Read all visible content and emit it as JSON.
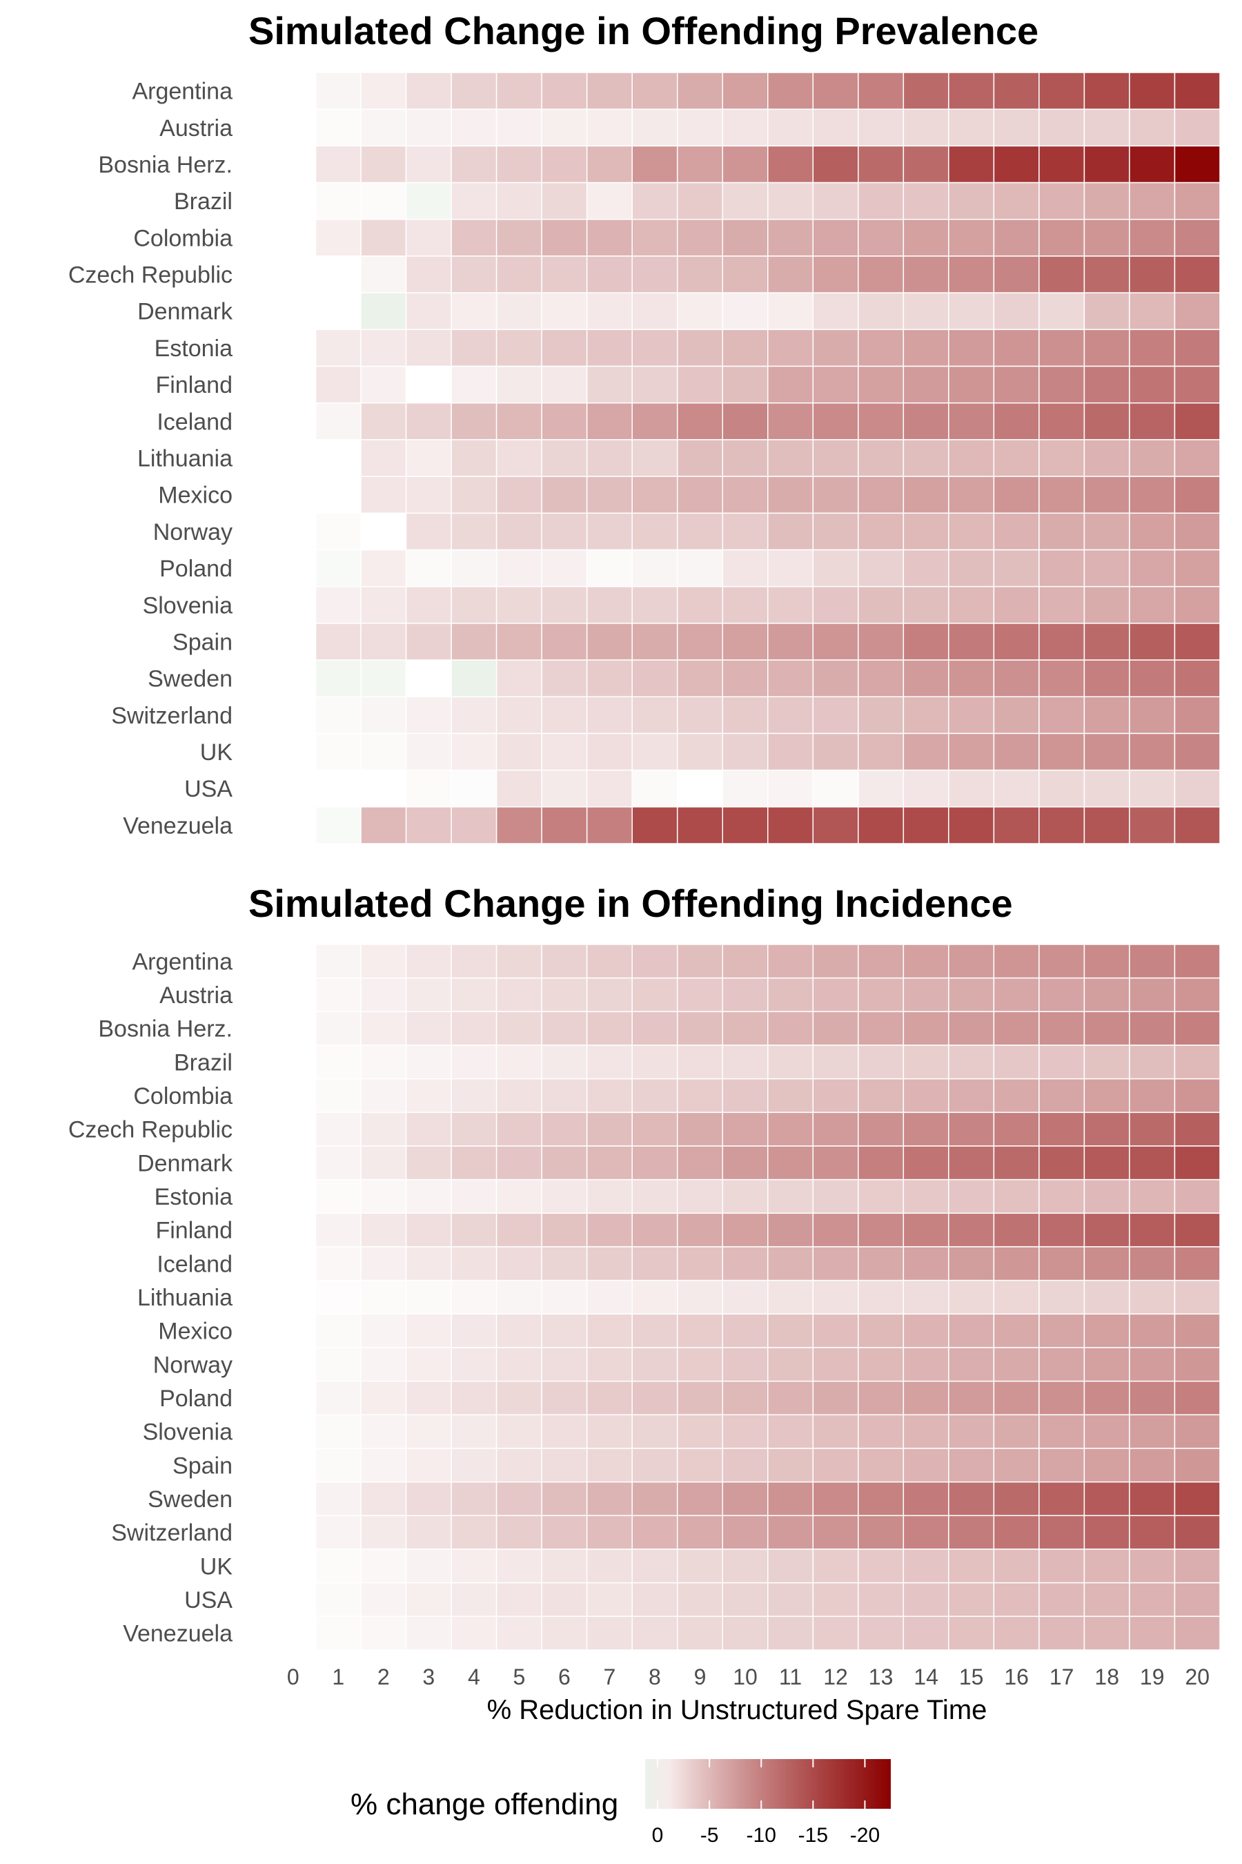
{
  "chart_data": [
    {
      "type": "heatmap",
      "title": "Simulated Change in Offending Prevalence",
      "rows": [
        "Argentina",
        "Austria",
        "Bosnia Herz.",
        "Brazil",
        "Colombia",
        "Czech Republic",
        "Denmark",
        "Estonia",
        "Finland",
        "Iceland",
        "Lithuania",
        "Mexico",
        "Norway",
        "Poland",
        "Slovenia",
        "Spain",
        "Sweden",
        "Switzerland",
        "UK",
        "USA",
        "Venezuela"
      ],
      "columns": [
        1,
        2,
        3,
        4,
        5,
        6,
        7,
        8,
        9,
        10,
        11,
        12,
        13,
        14,
        15,
        16,
        17,
        18,
        19,
        20
      ],
      "values": [
        [
          -0.5,
          -1,
          -2,
          -3,
          -3.5,
          -4,
          -4.5,
          -5,
          -6,
          -7,
          -8.5,
          -9,
          -10,
          -12,
          -12.5,
          -13,
          -14,
          -15,
          -16,
          -16.5
        ],
        [
          -0.2,
          -0.5,
          -0.7,
          -0.8,
          -0.8,
          -0.9,
          -1,
          -1.2,
          -1.3,
          -1.5,
          -1.8,
          -2,
          -2.2,
          -2.4,
          -2.6,
          -2.8,
          -3,
          -3,
          -3.5,
          -4
        ],
        [
          -1.5,
          -2.5,
          -1.5,
          -3,
          -3.5,
          -4,
          -5,
          -8,
          -7,
          -8,
          -11,
          -13,
          -12,
          -12,
          -16,
          -17,
          -17,
          -18,
          -20,
          -22
        ],
        [
          -0.2,
          -0.2,
          0.3,
          -1.5,
          -1.8,
          -2.5,
          -1,
          -3,
          -3.5,
          -2.5,
          -2.5,
          -3,
          -4,
          -4,
          -4.5,
          -5,
          -5.5,
          -6,
          -6.5,
          -7
        ],
        [
          -1,
          -2.5,
          -1.5,
          -4,
          -4.5,
          -5.5,
          -5.5,
          -5,
          -5.5,
          -6,
          -6,
          -6.5,
          -6.5,
          -7,
          -7,
          -7.5,
          -8,
          -8,
          -9,
          -9.5
        ],
        [
          0,
          -0.5,
          -2,
          -3,
          -3.5,
          -3.5,
          -4,
          -4,
          -4.5,
          -5,
          -6,
          -7,
          -8,
          -8.5,
          -9,
          -9.5,
          -12,
          -12,
          -13,
          -13.5
        ],
        [
          0,
          0.5,
          -1.5,
          -1,
          -1.2,
          -1,
          -1.3,
          -1.5,
          -1,
          -0.8,
          -1,
          -2,
          -2.5,
          -2.5,
          -2.5,
          -3,
          -2.5,
          -4.5,
          -5,
          -6.5
        ],
        [
          -1.2,
          -1.3,
          -1.8,
          -3,
          -3.2,
          -3.8,
          -4,
          -4,
          -4.5,
          -5,
          -5.5,
          -6,
          -6.5,
          -7,
          -7.5,
          -8,
          -8.5,
          -9,
          -10,
          -10.5
        ],
        [
          -1.5,
          -0.8,
          0,
          -0.8,
          -1.2,
          -1.3,
          -2.8,
          -3,
          -4,
          -4.5,
          -6.5,
          -6.5,
          -7,
          -7.5,
          -8,
          -8.5,
          -9.5,
          -10.5,
          -11,
          -11
        ],
        [
          -0.5,
          -2.5,
          -3,
          -4.5,
          -5,
          -5.5,
          -6.5,
          -7.5,
          -9,
          -9.5,
          -8.5,
          -9,
          -9,
          -9.5,
          -9.5,
          -10.5,
          -11,
          -12,
          -12.5,
          -14
        ],
        [
          0,
          -1.5,
          -1,
          -2.5,
          -2,
          -2.8,
          -3,
          -2.8,
          -4.5,
          -4.5,
          -4.5,
          -4.5,
          -4.5,
          -4.5,
          -5,
          -5,
          -5,
          -5.5,
          -6,
          -6.5
        ],
        [
          0,
          -1.5,
          -1.5,
          -2.5,
          -3.5,
          -4.5,
          -4.5,
          -5,
          -5.5,
          -5.5,
          -6,
          -6,
          -6.5,
          -7,
          -7,
          -8,
          -8,
          -8.5,
          -9,
          -10
        ],
        [
          -0.2,
          0,
          -2,
          -2.5,
          -3,
          -3,
          -3,
          -3.2,
          -3.5,
          -3.5,
          -4.5,
          -4.5,
          -5,
          -5,
          -5,
          -5.5,
          -6,
          -6,
          -7,
          -7.5
        ],
        [
          0.2,
          -1,
          -0.3,
          -0.5,
          -0.8,
          -0.8,
          -0.3,
          -0.5,
          -0.5,
          -1.5,
          -1.5,
          -2.5,
          -3,
          -4,
          -4.5,
          -4.5,
          -5.5,
          -5.5,
          -6.5,
          -7
        ],
        [
          -0.8,
          -1.3,
          -2,
          -2.5,
          -2.5,
          -2.8,
          -3,
          -3,
          -3.5,
          -3.5,
          -3.5,
          -4,
          -4.5,
          -4.5,
          -5,
          -5.5,
          -5.5,
          -6,
          -6.5,
          -7
        ],
        [
          -2,
          -2.2,
          -3,
          -4.5,
          -5,
          -5.5,
          -6,
          -6,
          -6.5,
          -7,
          -7.5,
          -8,
          -8.5,
          -10,
          -10.5,
          -11,
          -11.5,
          -12,
          -13,
          -13.5
        ],
        [
          0.3,
          0.3,
          0,
          0.5,
          -2,
          -3,
          -3.5,
          -4,
          -5,
          -5.5,
          -5.5,
          -6,
          -6.5,
          -7.5,
          -8,
          -8.5,
          -9,
          -10,
          -10.5,
          -11
        ],
        [
          -0.3,
          -0.5,
          -0.8,
          -1.3,
          -1.8,
          -2,
          -2.3,
          -2.7,
          -3,
          -3.5,
          -3.8,
          -4,
          -4.5,
          -5,
          -5.5,
          -6,
          -6.5,
          -7,
          -7.5,
          -8.5
        ],
        [
          -0.2,
          -0.3,
          -0.7,
          -1,
          -1.8,
          -1.5,
          -2,
          -1.8,
          -2.5,
          -3,
          -4,
          -4.5,
          -5,
          -6.5,
          -7,
          -7.5,
          -8,
          -8.5,
          -9,
          -9.5
        ],
        [
          0,
          0,
          -0.2,
          0.1,
          -1.8,
          -1.2,
          -1.5,
          -0.3,
          0,
          -0.5,
          -0.6,
          -0.3,
          -1.2,
          -1.5,
          -2,
          -2,
          -2.5,
          -2.5,
          -2.5,
          -3
        ],
        [
          0.2,
          -5,
          -4,
          -4,
          -9,
          -10,
          -10,
          -15,
          -15,
          -15,
          -15,
          -14,
          -15,
          -15,
          -15,
          -14,
          -14,
          -14,
          -13,
          -14
        ]
      ]
    },
    {
      "type": "heatmap",
      "title": "Simulated Change in Offending Incidence",
      "rows": [
        "Argentina",
        "Austria",
        "Bosnia Herz.",
        "Brazil",
        "Colombia",
        "Czech Republic",
        "Denmark",
        "Estonia",
        "Finland",
        "Iceland",
        "Lithuania",
        "Mexico",
        "Norway",
        "Poland",
        "Slovenia",
        "Spain",
        "Sweden",
        "Switzerland",
        "UK",
        "USA",
        "Venezuela"
      ],
      "columns": [
        1,
        2,
        3,
        4,
        5,
        6,
        7,
        8,
        9,
        10,
        11,
        12,
        13,
        14,
        15,
        16,
        17,
        18,
        19,
        20
      ],
      "values": [
        [
          -0.5,
          -1,
          -1.5,
          -2,
          -2.5,
          -3,
          -3.5,
          -4,
          -4.5,
          -5,
          -5.5,
          -6,
          -6.5,
          -7,
          -7.5,
          -8,
          -8.5,
          -9,
          -9.5,
          -10
        ],
        [
          -0.4,
          -0.8,
          -1.2,
          -1.6,
          -2,
          -2.4,
          -2.8,
          -3.2,
          -3.6,
          -4,
          -4.4,
          -4.8,
          -5.2,
          -5.6,
          -6,
          -6.4,
          -6.8,
          -7.2,
          -7.6,
          -8
        ],
        [
          -0.5,
          -1,
          -1.5,
          -2,
          -2.5,
          -3,
          -3.5,
          -4,
          -4.5,
          -5,
          -5.5,
          -6,
          -6.5,
          -7,
          -7.5,
          -8,
          -8.5,
          -9,
          -9.5,
          -10
        ],
        [
          -0.2,
          -0.4,
          -0.6,
          -0.8,
          -1,
          -1.2,
          -1.5,
          -1.8,
          -2,
          -2.2,
          -2.5,
          -2.8,
          -3,
          -3.2,
          -3.5,
          -3.8,
          -4,
          -4.2,
          -4.5,
          -5
        ],
        [
          -0.3,
          -0.6,
          -1,
          -1.4,
          -1.8,
          -2.2,
          -2.6,
          -3,
          -3.4,
          -3.8,
          -4.2,
          -4.6,
          -5,
          -5.4,
          -5.8,
          -6.2,
          -6.6,
          -7,
          -7.4,
          -8
        ],
        [
          -0.6,
          -1.2,
          -2,
          -2.8,
          -3.5,
          -4,
          -4.5,
          -5,
          -6,
          -6.5,
          -7,
          -7.5,
          -8.5,
          -9,
          -9.5,
          -10,
          -11,
          -11.5,
          -12,
          -13
        ],
        [
          -0.6,
          -1.2,
          -2.5,
          -3.5,
          -4,
          -4.5,
          -5,
          -5.5,
          -6.5,
          -7.5,
          -8,
          -8.5,
          -10,
          -11,
          -11.5,
          -12,
          -13,
          -13.5,
          -14,
          -15
        ],
        [
          -0.2,
          -0.4,
          -0.6,
          -0.8,
          -1,
          -1.3,
          -1.6,
          -1.9,
          -2.2,
          -2.5,
          -2.8,
          -3.1,
          -3.4,
          -3.7,
          -4,
          -4.3,
          -4.6,
          -4.9,
          -5.2,
          -5.5
        ],
        [
          -0.7,
          -1.4,
          -2.1,
          -2.8,
          -3.5,
          -4.2,
          -4.9,
          -5.6,
          -6.3,
          -7,
          -7.7,
          -8.4,
          -9.1,
          -9.8,
          -10.5,
          -11.2,
          -11.9,
          -12.6,
          -13.3,
          -14
        ],
        [
          -0.4,
          -0.8,
          -1.3,
          -1.8,
          -2.3,
          -2.8,
          -3.3,
          -3.8,
          -4.3,
          -4.8,
          -5.3,
          -5.8,
          -6.3,
          -6.8,
          -7.3,
          -7.8,
          -8.3,
          -8.8,
          -9.3,
          -9.8
        ],
        [
          -0.1,
          -0.2,
          -0.3,
          -0.4,
          -0.5,
          -0.6,
          -0.8,
          -1,
          -1.2,
          -1.4,
          -1.6,
          -1.8,
          -2,
          -2.2,
          -2.4,
          -2.6,
          -2.8,
          -3,
          -3.2,
          -3.5
        ],
        [
          -0.3,
          -0.6,
          -1,
          -1.4,
          -1.8,
          -2.2,
          -2.6,
          -3,
          -3.4,
          -3.8,
          -4.2,
          -4.6,
          -5,
          -5.4,
          -5.8,
          -6.2,
          -6.6,
          -7,
          -7.4,
          -7.8
        ],
        [
          -0.3,
          -0.6,
          -1,
          -1.4,
          -1.8,
          -2.2,
          -2.6,
          -3,
          -3.4,
          -3.8,
          -4.2,
          -4.6,
          -5,
          -5.4,
          -5.8,
          -6.2,
          -6.6,
          -7,
          -7.4,
          -7.8
        ],
        [
          -0.5,
          -1,
          -1.5,
          -2,
          -2.5,
          -3,
          -3.5,
          -4,
          -4.5,
          -5,
          -5.5,
          -6,
          -6.5,
          -7,
          -7.5,
          -8,
          -8.5,
          -9,
          -9.5,
          -10
        ],
        [
          -0.3,
          -0.6,
          -0.9,
          -1.2,
          -1.6,
          -2,
          -2.4,
          -2.8,
          -3.2,
          -3.6,
          -4,
          -4.4,
          -4.8,
          -5.2,
          -5.6,
          -6,
          -6.4,
          -6.8,
          -7.2,
          -7.6
        ],
        [
          -0.3,
          -0.6,
          -1,
          -1.4,
          -1.8,
          -2.2,
          -2.6,
          -3,
          -3.4,
          -3.8,
          -4.2,
          -4.6,
          -5,
          -5.4,
          -5.8,
          -6.2,
          -6.6,
          -7,
          -7.4,
          -7.8
        ],
        [
          -0.7,
          -1.5,
          -2.3,
          -3,
          -3.8,
          -4.5,
          -5.3,
          -6,
          -6.8,
          -7.5,
          -8.3,
          -9,
          -9.8,
          -10.5,
          -11.3,
          -12,
          -12.8,
          -13.5,
          -14.3,
          -15
        ],
        [
          -0.6,
          -1.2,
          -1.9,
          -2.6,
          -3.3,
          -4,
          -4.7,
          -5.4,
          -6.1,
          -6.8,
          -7.5,
          -8.2,
          -8.9,
          -9.6,
          -10.3,
          -11,
          -11.7,
          -12.4,
          -13.1,
          -13.8
        ],
        [
          -0.2,
          -0.4,
          -0.7,
          -1,
          -1.3,
          -1.6,
          -1.9,
          -2.2,
          -2.5,
          -2.8,
          -3.1,
          -3.4,
          -3.7,
          -4,
          -4.3,
          -4.6,
          -4.9,
          -5.2,
          -5.5,
          -5.8
        ],
        [
          -0.3,
          -0.6,
          -0.9,
          -1.2,
          -1.5,
          -1.8,
          -1.6,
          -2.2,
          -2.5,
          -2.8,
          -3.1,
          -3.4,
          -3.7,
          -4,
          -4.3,
          -4.6,
          -4.9,
          -5.2,
          -5.5,
          -5.8
        ],
        [
          -0.2,
          -0.4,
          -0.7,
          -1,
          -1.3,
          -1.6,
          -1.9,
          -2.2,
          -2.5,
          -2.8,
          -3.1,
          -3.4,
          -3.7,
          -4,
          -4.3,
          -4.6,
          -4.9,
          -5.2,
          -5.5,
          -5.8
        ]
      ]
    }
  ],
  "shared_x_axis": {
    "label": "% Reduction in Unstructured Spare Time",
    "tick_labels": [
      "0",
      "1",
      "2",
      "3",
      "4",
      "5",
      "6",
      "7",
      "8",
      "9",
      "10",
      "11",
      "12",
      "13",
      "14",
      "15",
      "16",
      "17",
      "18",
      "19",
      "20"
    ]
  },
  "legend": {
    "title": "% change offending",
    "tick_labels": [
      "0",
      "-5",
      "-10",
      "-15",
      "-20"
    ],
    "tick_values": [
      0,
      -5,
      -10,
      -15,
      -20
    ],
    "range": [
      -22.5,
      0.5
    ],
    "colors": {
      "low": "#8b0000",
      "mid": "#ffffff",
      "high": "#eaf2ea"
    }
  }
}
